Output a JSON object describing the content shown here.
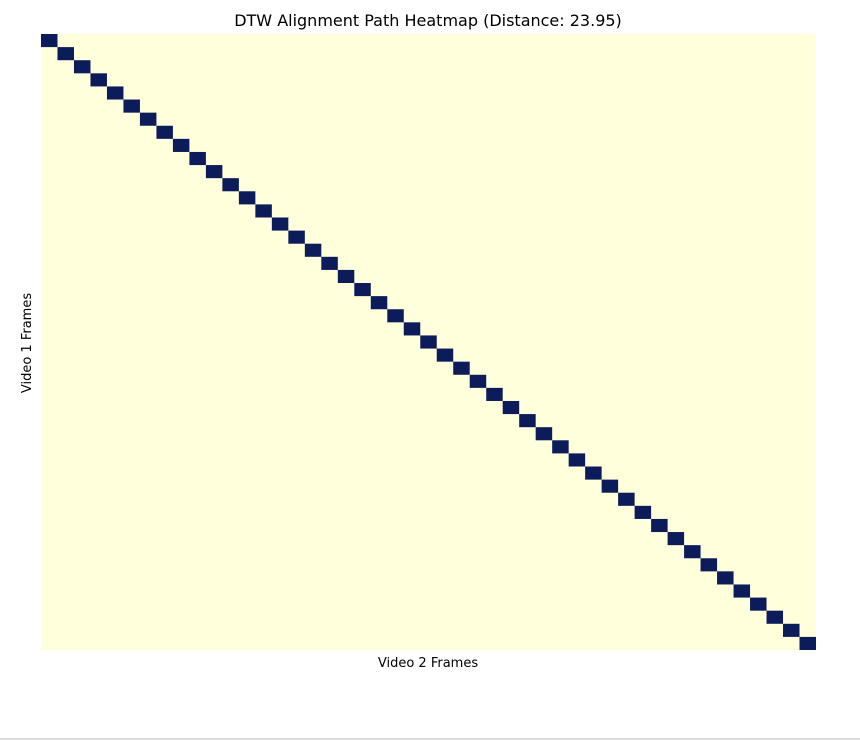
{
  "chart_data": {
    "type": "heatmap",
    "title": "DTW Alignment Path Heatmap (Distance: 23.95)",
    "xlabel": "Video 2 Frames",
    "ylabel": "Video 1 Frames",
    "rows": 47,
    "cols": 47,
    "path_value": 1,
    "background_value": 0,
    "path": [
      [
        0,
        0
      ],
      [
        1,
        1
      ],
      [
        2,
        2
      ],
      [
        3,
        3
      ],
      [
        4,
        4
      ],
      [
        5,
        5
      ],
      [
        6,
        6
      ],
      [
        7,
        7
      ],
      [
        8,
        8
      ],
      [
        9,
        9
      ],
      [
        10,
        10
      ],
      [
        11,
        11
      ],
      [
        12,
        12
      ],
      [
        13,
        13
      ],
      [
        14,
        14
      ],
      [
        15,
        15
      ],
      [
        16,
        16
      ],
      [
        17,
        17
      ],
      [
        18,
        18
      ],
      [
        19,
        19
      ],
      [
        20,
        20
      ],
      [
        21,
        21
      ],
      [
        22,
        22
      ],
      [
        23,
        23
      ],
      [
        24,
        24
      ],
      [
        25,
        25
      ],
      [
        26,
        26
      ],
      [
        27,
        27
      ],
      [
        28,
        28
      ],
      [
        29,
        29
      ],
      [
        30,
        30
      ],
      [
        31,
        31
      ],
      [
        32,
        32
      ],
      [
        33,
        33
      ],
      [
        34,
        34
      ],
      [
        35,
        35
      ],
      [
        36,
        36
      ],
      [
        37,
        37
      ],
      [
        38,
        38
      ],
      [
        39,
        39
      ],
      [
        40,
        40
      ],
      [
        41,
        41
      ],
      [
        42,
        42
      ],
      [
        43,
        43
      ],
      [
        44,
        44
      ],
      [
        45,
        45
      ],
      [
        46,
        46
      ]
    ],
    "colors": {
      "background": "#ffffdb",
      "path": "#0c1c5a"
    },
    "ticks": false,
    "grid": false
  }
}
